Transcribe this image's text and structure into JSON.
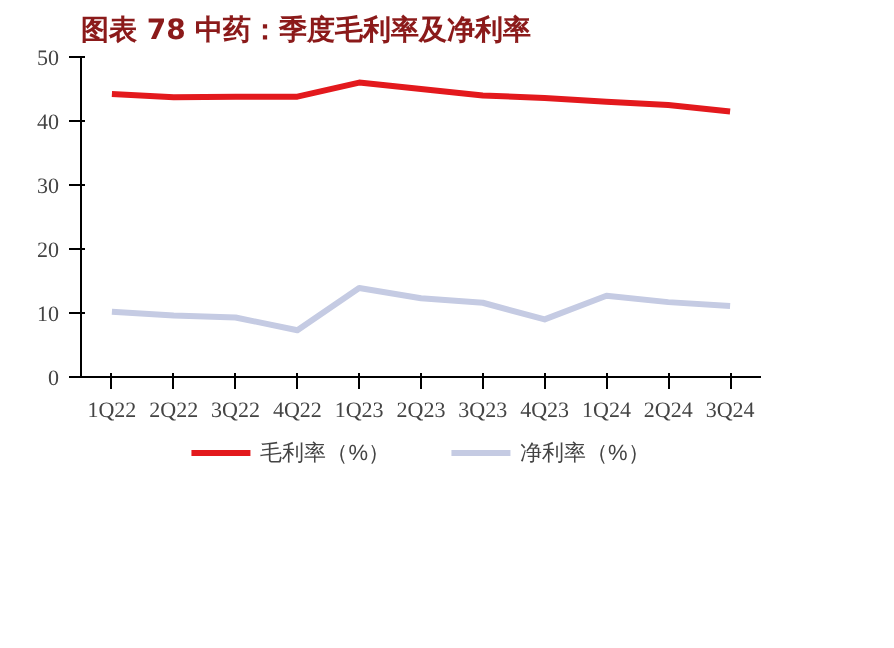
{
  "chart_data": {
    "type": "line",
    "title": "图表 78 中药：季度毛利率及净利率",
    "categories": [
      "1Q22",
      "2Q22",
      "3Q22",
      "4Q22",
      "1Q23",
      "2Q23",
      "3Q23",
      "4Q23",
      "1Q24",
      "2Q24",
      "3Q24"
    ],
    "series": [
      {
        "name": "毛利率（%）",
        "color": "#e3191d",
        "values": [
          44.2,
          43.7,
          43.8,
          43.8,
          46.0,
          45.0,
          44.0,
          43.6,
          43.0,
          42.5,
          41.5
        ]
      },
      {
        "name": "净利率（%）",
        "color": "#c5cbe3",
        "values": [
          10.2,
          9.6,
          9.3,
          7.3,
          13.9,
          12.3,
          11.6,
          9.0,
          12.7,
          11.7,
          11.1
        ]
      }
    ],
    "ylim": [
      0,
      50
    ],
    "yticks": [
      0,
      10,
      20,
      30,
      40,
      50
    ],
    "grid": false,
    "legend": "bottom",
    "marker": "none",
    "line_style": "solid"
  }
}
